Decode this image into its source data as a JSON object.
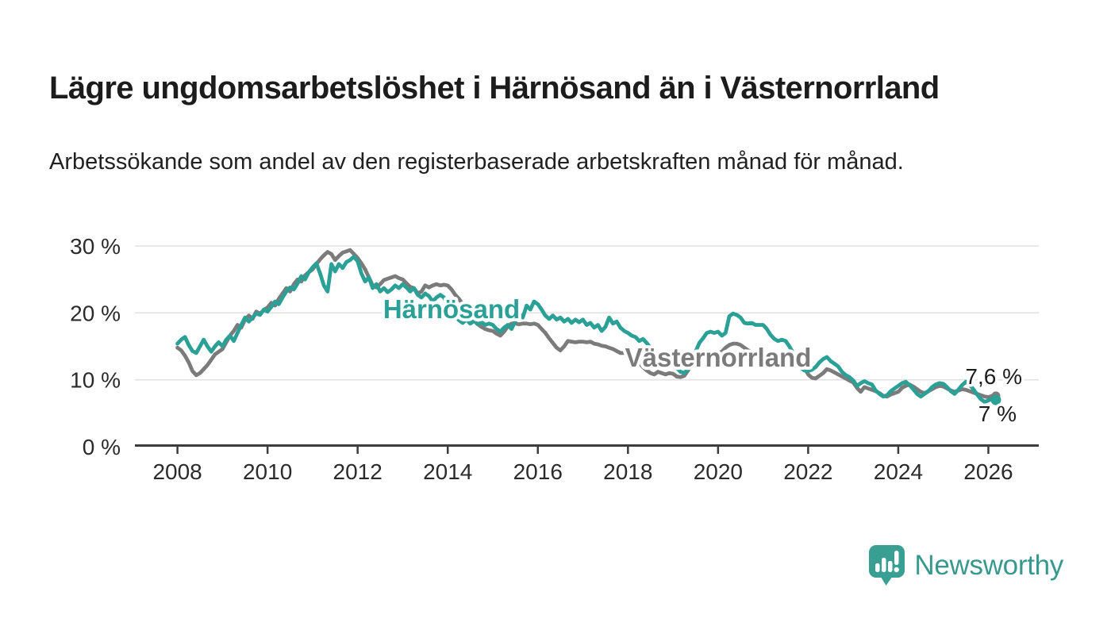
{
  "header": {
    "title": "Lägre ungdomsarbetslöshet i Härnösand än i Västernorrland",
    "subtitle": "Arbetssökande som andel av den registerbaserade arbetskraften månad för månad."
  },
  "footer": {
    "brand": "Newsworthy",
    "logo_icon": "bar-chart-speech-bubble-icon"
  },
  "colors": {
    "teal": "#2aa096",
    "gray": "#7b7b7b",
    "grid": "#e2e2e2",
    "axis": "#3c3c3c",
    "text_dark": "#1d1d1d",
    "tick_text": "#2b2b2b",
    "brand_teal": "#37998e"
  },
  "chart_data": {
    "type": "line",
    "title": "Lägre ungdomsarbetslöshet i Härnösand än i Västernorrland",
    "xlabel": "",
    "ylabel": "Arbetssökande som andel av den registerbaserade arbetskraften (%)",
    "unit": "%",
    "grid": "horizontal",
    "legend_position": "inline-labels",
    "x_start_year": 2008,
    "points_per_year": 12,
    "x_end_year_frac": 2026.17,
    "ylim": [
      0,
      32
    ],
    "x_ticks": [
      "2008",
      "2010",
      "2012",
      "2014",
      "2016",
      "2018",
      "2020",
      "2022",
      "2024",
      "2026"
    ],
    "y_ticks": [
      {
        "value": 0,
        "label": "0 %"
      },
      {
        "value": 10,
        "label": "10 %"
      },
      {
        "value": 20,
        "label": "20 %"
      },
      {
        "value": 30,
        "label": "30 %"
      }
    ],
    "series": [
      {
        "name": "Västernorrland",
        "color": "#7b7b7b",
        "end_label": "7,6 %",
        "end_value": 7.6,
        "values": [
          14.8,
          14.4,
          13.6,
          12.6,
          11.3,
          10.7,
          11.0,
          11.6,
          12.2,
          13.0,
          13.8,
          14.2,
          14.6,
          15.6,
          16.6,
          17.3,
          18.2,
          17.8,
          19.0,
          19.6,
          19.1,
          20.2,
          19.9,
          20.4,
          20.8,
          21.5,
          21.1,
          22.1,
          22.9,
          23.7,
          23.2,
          24.3,
          25.0,
          24.7,
          25.6,
          26.1,
          26.5,
          27.3,
          28.0,
          28.6,
          29.1,
          28.8,
          27.9,
          28.5,
          29.0,
          29.2,
          29.4,
          28.8,
          28.2,
          27.4,
          26.5,
          25.3,
          24.1,
          23.8,
          24.3,
          24.9,
          25.1,
          25.3,
          25.5,
          25.2,
          25.0,
          24.4,
          23.9,
          23.7,
          22.9,
          23.2,
          24.1,
          23.8,
          24.1,
          24.3,
          24.1,
          24.2,
          24.1,
          23.5,
          22.7,
          22.1,
          21.3,
          20.4,
          19.6,
          18.9,
          18.3,
          17.9,
          17.6,
          17.4,
          17.3,
          16.9,
          16.6,
          17.2,
          18.0,
          18.4,
          18.4,
          18.3,
          18.4,
          18.4,
          18.3,
          18.4,
          18.2,
          17.6,
          17.0,
          16.2,
          15.5,
          14.8,
          14.4,
          15.0,
          15.8,
          15.7,
          15.6,
          15.7,
          15.7,
          15.6,
          15.7,
          15.4,
          15.3,
          15.1,
          15.0,
          14.8,
          14.6,
          14.3,
          14.0,
          14.0,
          13.8,
          13.0,
          12.7,
          12.5,
          11.9,
          11.4,
          11.0,
          10.8,
          11.2,
          11.0,
          10.8,
          11.0,
          10.9,
          10.5,
          10.4,
          10.6,
          11.4,
          12.4,
          13.6,
          14.2,
          13.9,
          14.1,
          13.8,
          14.0,
          14.0,
          14.2,
          14.8,
          15.2,
          15.4,
          15.4,
          15.2,
          14.8,
          14.4,
          14.2,
          13.8,
          13.6,
          13.4,
          13.2,
          12.9,
          12.6,
          12.4,
          12.5,
          12.6,
          12.3,
          12.1,
          12.2,
          12.0,
          11.8,
          10.8,
          10.3,
          10.2,
          10.6,
          11.0,
          11.6,
          11.4,
          11.1,
          10.8,
          10.5,
          10.2,
          9.9,
          9.6,
          8.8,
          8.2,
          8.9,
          8.7,
          8.5,
          8.3,
          8.0,
          7.6,
          7.5,
          7.8,
          8.0,
          8.2,
          8.8,
          9.1,
          9.3,
          9.0,
          8.6,
          8.2,
          8.0,
          8.3,
          8.6,
          8.9,
          9.1,
          9.0,
          8.7,
          8.4,
          8.2,
          8.4,
          8.6,
          8.5,
          8.3,
          8.1,
          7.9,
          7.7,
          7.5,
          7.4,
          7.6,
          7.6
        ]
      },
      {
        "name": "Härnösand",
        "color": "#2aa096",
        "end_label": "7 %",
        "end_value": 7.0,
        "values": [
          15.4,
          16.0,
          16.4,
          15.2,
          14.3,
          14.0,
          15.0,
          16.0,
          15.0,
          14.2,
          15.0,
          15.6,
          15.0,
          16.0,
          16.6,
          15.8,
          17.0,
          18.2,
          19.3,
          18.7,
          19.3,
          19.9,
          19.7,
          20.5,
          20.2,
          20.9,
          21.7,
          21.3,
          22.3,
          23.2,
          23.8,
          23.5,
          24.4,
          25.5,
          25.0,
          26.1,
          26.8,
          27.4,
          25.9,
          24.1,
          23.2,
          27.3,
          26.2,
          27.3,
          26.7,
          27.6,
          27.9,
          28.4,
          27.7,
          25.9,
          24.7,
          25.3,
          23.7,
          24.3,
          23.2,
          23.7,
          23.1,
          23.5,
          24.1,
          23.7,
          24.3,
          23.8,
          23.2,
          23.7,
          22.7,
          22.3,
          22.9,
          22.5,
          21.7,
          22.3,
          22.7,
          22.3,
          21.1,
          20.5,
          19.6,
          18.9,
          18.5,
          19.0,
          18.4,
          18.8,
          18.3,
          18.6,
          18.2,
          18.4,
          18.2,
          17.6,
          17.2,
          17.8,
          18.2,
          17.6,
          18.8,
          19.9,
          19.3,
          21.1,
          20.5,
          21.7,
          21.3,
          20.5,
          19.6,
          19.1,
          19.6,
          19.0,
          19.3,
          18.7,
          19.1,
          18.5,
          19.0,
          18.6,
          19.0,
          18.2,
          18.5,
          17.8,
          18.2,
          17.3,
          17.9,
          19.3,
          18.4,
          18.7,
          17.8,
          17.3,
          17.0,
          16.6,
          16.4,
          15.8,
          16.1,
          15.5,
          14.8,
          14.0,
          13.2,
          12.8,
          12.5,
          12.6,
          12.4,
          11.8,
          11.2,
          11.0,
          11.6,
          12.6,
          14.2,
          15.5,
          16.2,
          17.0,
          17.2,
          17.0,
          17.2,
          16.6,
          17.0,
          19.5,
          19.9,
          19.7,
          19.3,
          18.5,
          18.4,
          18.5,
          18.2,
          18.2,
          18.2,
          17.6,
          16.7,
          16.1,
          15.8,
          16.0,
          15.8,
          15.0,
          14.0,
          12.6,
          11.8,
          11.4,
          11.3,
          11.5,
          11.9,
          12.6,
          13.1,
          13.4,
          12.8,
          12.4,
          12.0,
          11.2,
          10.7,
          10.4,
          9.9,
          9.1,
          9.5,
          9.8,
          9.5,
          9.3,
          8.4,
          7.9,
          7.5,
          7.7,
          8.3,
          8.7,
          9.1,
          9.5,
          9.7,
          9.2,
          8.6,
          7.9,
          7.5,
          7.9,
          8.3,
          8.9,
          9.3,
          9.5,
          9.4,
          8.9,
          8.3,
          7.9,
          8.5,
          9.2,
          9.7,
          9.3,
          8.6,
          7.8,
          7.1,
          6.7,
          6.9,
          7.2,
          7.0
        ]
      }
    ]
  }
}
